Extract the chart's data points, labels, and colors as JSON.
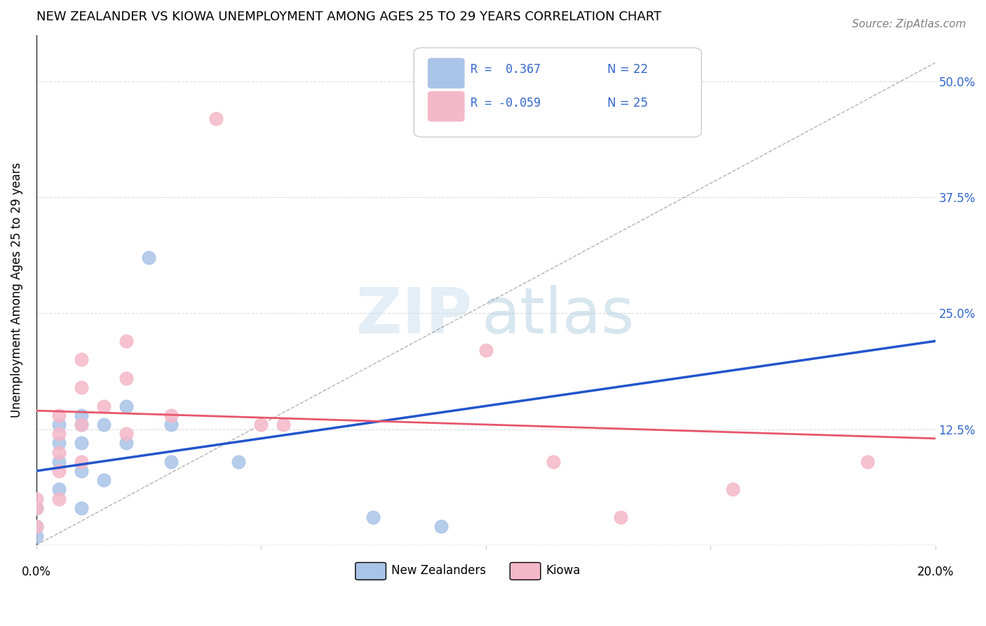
{
  "title": "NEW ZEALANDER VS KIOWA UNEMPLOYMENT AMONG AGES 25 TO 29 YEARS CORRELATION CHART",
  "source": "Source: ZipAtlas.com",
  "ylabel": "Unemployment Among Ages 25 to 29 years",
  "ytick_labels": [
    "",
    "12.5%",
    "25.0%",
    "37.5%",
    "50.0%"
  ],
  "ytick_values": [
    0,
    0.125,
    0.25,
    0.375,
    0.5
  ],
  "xlim": [
    0,
    0.2
  ],
  "ylim": [
    0,
    0.55
  ],
  "legend_r_nz": "R =  0.367",
  "legend_n_nz": "N = 22",
  "legend_r_kiowa": "R = -0.059",
  "legend_n_kiowa": "N = 25",
  "nz_color": "#aac4e8",
  "nz_line_color": "#2255cc",
  "kiowa_color": "#f5b8c8",
  "kiowa_line_color": "#e8556a",
  "nz_points_x": [
    0.0,
    0.0,
    0.0,
    0.005,
    0.005,
    0.005,
    0.005,
    0.01,
    0.01,
    0.01,
    0.01,
    0.01,
    0.015,
    0.015,
    0.02,
    0.02,
    0.025,
    0.03,
    0.03,
    0.045,
    0.075,
    0.09
  ],
  "nz_points_y": [
    0.04,
    0.02,
    0.01,
    0.13,
    0.11,
    0.09,
    0.06,
    0.14,
    0.13,
    0.11,
    0.08,
    0.04,
    0.13,
    0.07,
    0.15,
    0.11,
    0.31,
    0.13,
    0.09,
    0.09,
    0.03,
    0.02
  ],
  "kiowa_points_x": [
    0.0,
    0.0,
    0.0,
    0.005,
    0.005,
    0.005,
    0.005,
    0.005,
    0.01,
    0.01,
    0.01,
    0.01,
    0.015,
    0.02,
    0.02,
    0.02,
    0.03,
    0.04,
    0.05,
    0.055,
    0.1,
    0.115,
    0.13,
    0.155,
    0.185
  ],
  "kiowa_points_y": [
    0.05,
    0.04,
    0.02,
    0.14,
    0.12,
    0.1,
    0.08,
    0.05,
    0.2,
    0.17,
    0.13,
    0.09,
    0.15,
    0.22,
    0.18,
    0.12,
    0.14,
    0.46,
    0.13,
    0.13,
    0.21,
    0.09,
    0.03,
    0.06,
    0.09
  ],
  "nz_trend_x": [
    0,
    0.2
  ],
  "nz_trend_y": [
    0.08,
    0.22
  ],
  "kiowa_trend_x": [
    0,
    0.2
  ],
  "kiowa_trend_y": [
    0.145,
    0.115
  ],
  "dashed_line_x": [
    0.0,
    0.2
  ],
  "dashed_line_y": [
    0.0,
    0.52
  ]
}
